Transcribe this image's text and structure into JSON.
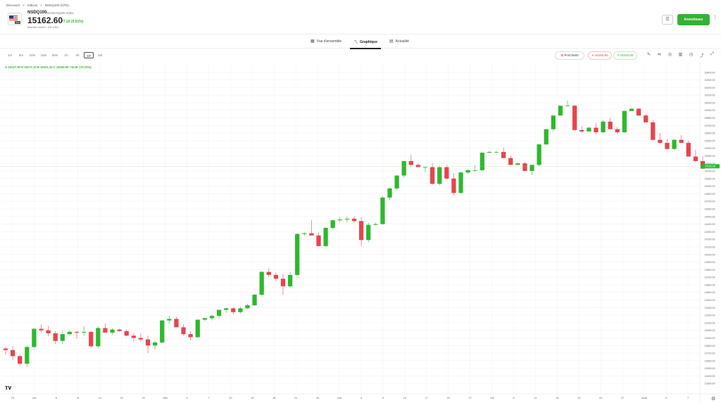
{
  "breadcrumb": [
    "Découvrir",
    ">",
    "Indices",
    ">",
    "NSDQ100 (CFD)"
  ],
  "instrument": {
    "symbol": "NSDQ100",
    "name": "NASDAQ100 Index",
    "price": "15162.60",
    "change": "77.10 (0.51%)",
    "market_status": "Marché ouvert · EN USD",
    "flag_tag": "CFD"
  },
  "header_buttons": {
    "invest": "Investissez"
  },
  "tabs": [
    {
      "label": "Vue d'ensemble",
      "icon": "overview-icon"
    },
    {
      "label": "Graphique",
      "icon": "chart-icon",
      "active": true
    },
    {
      "label": "Actualité",
      "icon": "news-icon"
    }
  ],
  "timeframes": [
    "1m",
    "5m",
    "10m",
    "15m",
    "30m",
    "1h",
    "4h",
    "1D",
    "1W"
  ],
  "active_timeframe": "1D",
  "toolbar": {
    "prochart": "ProCharts",
    "sell": "V 15162.60",
    "buy": "A 15163.00"
  },
  "ohlc_line": "O 15127.30  H 15171.10  B 15101.10  C 15163.60  +15.90 (+0.10%)",
  "chart_data": {
    "type": "candlestick",
    "ylim": [
      12200,
      16500
    ],
    "y_ticks": [
      12300,
      12400,
      12500,
      12600,
      12700,
      12800,
      12900,
      13000,
      13100,
      13200,
      13300,
      13400,
      13500,
      13600,
      13700,
      13800,
      13900,
      14000,
      14100,
      14200,
      14300,
      14400,
      14500,
      14600,
      14700,
      14800,
      14900,
      15000,
      15100,
      15200,
      15300,
      15400,
      15500,
      15600,
      15700,
      15800,
      15900,
      16000,
      16100,
      16200,
      16300,
      16400
    ],
    "x_labels": [
      "23",
      "Avr",
      "6",
      "11",
      "14",
      "19",
      "22",
      "Mai",
      "4",
      "7",
      "10",
      "13",
      "18",
      "21",
      "26",
      "Juin",
      "4",
      "9",
      "14",
      "17",
      "22",
      "27",
      "Juil",
      "6",
      "11",
      "14",
      "19",
      "24",
      "27",
      "Août",
      "4",
      "7"
    ],
    "last_price": 15162.6,
    "last_label": "15162.60",
    "candles": [
      [
        12760,
        12780,
        12680,
        12740
      ],
      [
        12740,
        12790,
        12610,
        12660
      ],
      [
        12660,
        12680,
        12540,
        12560
      ],
      [
        12560,
        12800,
        12520,
        12780
      ],
      [
        12780,
        13030,
        12770,
        13020
      ],
      [
        13020,
        13080,
        12970,
        13000
      ],
      [
        13000,
        13060,
        12920,
        12960
      ],
      [
        12960,
        12990,
        12820,
        12860
      ],
      [
        12860,
        12990,
        12820,
        12950
      ],
      [
        12950,
        13000,
        12930,
        12980
      ],
      [
        12980,
        12990,
        12890,
        12970
      ],
      [
        12970,
        13060,
        12930,
        12980
      ],
      [
        12980,
        12990,
        12770,
        12790
      ],
      [
        12790,
        13050,
        12770,
        13030
      ],
      [
        13030,
        13090,
        12980,
        12970
      ],
      [
        12970,
        13030,
        12940,
        13010
      ],
      [
        13010,
        13020,
        12980,
        12990
      ],
      [
        12990,
        13010,
        12920,
        12930
      ],
      [
        12930,
        12960,
        12850,
        12900
      ],
      [
        12900,
        12960,
        12850,
        12880
      ],
      [
        12880,
        12930,
        12700,
        12800
      ],
      [
        12800,
        12860,
        12750,
        12840
      ],
      [
        12840,
        13140,
        12830,
        13130
      ],
      [
        13130,
        13190,
        13090,
        13150
      ],
      [
        13150,
        13180,
        13060,
        13040
      ],
      [
        13040,
        13080,
        12930,
        12950
      ],
      [
        12950,
        12990,
        12870,
        12910
      ],
      [
        12910,
        13110,
        12900,
        13140
      ],
      [
        13140,
        13170,
        13120,
        13160
      ],
      [
        13160,
        13210,
        13130,
        13190
      ],
      [
        13190,
        13270,
        13160,
        13270
      ],
      [
        13270,
        13300,
        13230,
        13290
      ],
      [
        13290,
        13310,
        13210,
        13240
      ],
      [
        13240,
        13310,
        13220,
        13290
      ],
      [
        13290,
        13350,
        13280,
        13330
      ],
      [
        13330,
        13480,
        13320,
        13470
      ],
      [
        13470,
        13780,
        13460,
        13770
      ],
      [
        13770,
        13820,
        13700,
        13730
      ],
      [
        13730,
        13760,
        13650,
        13680
      ],
      [
        13680,
        13740,
        13470,
        13580
      ],
      [
        13580,
        13770,
        13560,
        13730
      ],
      [
        13730,
        14280,
        13720,
        14270
      ],
      [
        14270,
        14290,
        14250,
        14280
      ],
      [
        14280,
        14450,
        14250,
        14250
      ],
      [
        14250,
        14290,
        14110,
        14110
      ],
      [
        14110,
        14360,
        14100,
        14350
      ],
      [
        14350,
        14460,
        14330,
        14450
      ],
      [
        14450,
        14490,
        14420,
        14460
      ],
      [
        14460,
        14500,
        14420,
        14470
      ],
      [
        14470,
        14500,
        14420,
        14440
      ],
      [
        14440,
        14490,
        14110,
        14190
      ],
      [
        14190,
        14420,
        14160,
        14390
      ],
      [
        14390,
        14420,
        14380,
        14400
      ],
      [
        14400,
        14770,
        14390,
        14750
      ],
      [
        14750,
        14880,
        14720,
        14870
      ],
      [
        14870,
        15040,
        14850,
        15040
      ],
      [
        15040,
        15230,
        15010,
        15230
      ],
      [
        15230,
        15310,
        15150,
        15180
      ],
      [
        15180,
        15200,
        15150,
        15150
      ],
      [
        15150,
        15160,
        15080,
        15150
      ],
      [
        15150,
        15200,
        14920,
        14930
      ],
      [
        14930,
        15170,
        14910,
        15150
      ],
      [
        15150,
        15180,
        14990,
        15000
      ],
      [
        15000,
        15070,
        14780,
        14810
      ],
      [
        14810,
        15090,
        14800,
        15080
      ],
      [
        15080,
        15120,
        15060,
        15110
      ],
      [
        15110,
        15180,
        15090,
        15110
      ],
      [
        15110,
        15350,
        15100,
        15340
      ],
      [
        15340,
        15360,
        15340,
        15350
      ],
      [
        15350,
        15360,
        15350,
        15350
      ],
      [
        15350,
        15410,
        15280,
        15270
      ],
      [
        15270,
        15300,
        15190,
        15180
      ],
      [
        15180,
        15210,
        15180,
        15200
      ],
      [
        15200,
        15220,
        15100,
        15100
      ],
      [
        15100,
        15180,
        15050,
        15180
      ],
      [
        15180,
        15460,
        15160,
        15450
      ],
      [
        15450,
        15650,
        15440,
        15650
      ],
      [
        15650,
        15820,
        15620,
        15830
      ],
      [
        15830,
        15950,
        15830,
        15960
      ],
      [
        15960,
        16030,
        15950,
        15960
      ],
      [
        15960,
        15970,
        15630,
        15640
      ],
      [
        15640,
        15690,
        15600,
        15620
      ],
      [
        15620,
        15680,
        15620,
        15670
      ],
      [
        15670,
        15730,
        15580,
        15610
      ],
      [
        15610,
        15770,
        15600,
        15750
      ],
      [
        15750,
        15800,
        15650,
        15650
      ],
      [
        15650,
        15680,
        15590,
        15610
      ],
      [
        15610,
        15900,
        15600,
        15890
      ],
      [
        15890,
        15930,
        15890,
        15920
      ],
      [
        15920,
        15930,
        15840,
        15830
      ],
      [
        15830,
        15850,
        15740,
        15740
      ],
      [
        15740,
        15770,
        15510,
        15510
      ],
      [
        15510,
        15600,
        15460,
        15470
      ],
      [
        15470,
        15520,
        15380,
        15390
      ],
      [
        15390,
        15520,
        15380,
        15510
      ],
      [
        15510,
        15570,
        15470,
        15470
      ],
      [
        15470,
        15500,
        15300,
        15290
      ],
      [
        15290,
        15380,
        15210,
        15230
      ],
      [
        15230,
        15300,
        15160,
        15130
      ]
    ]
  }
}
